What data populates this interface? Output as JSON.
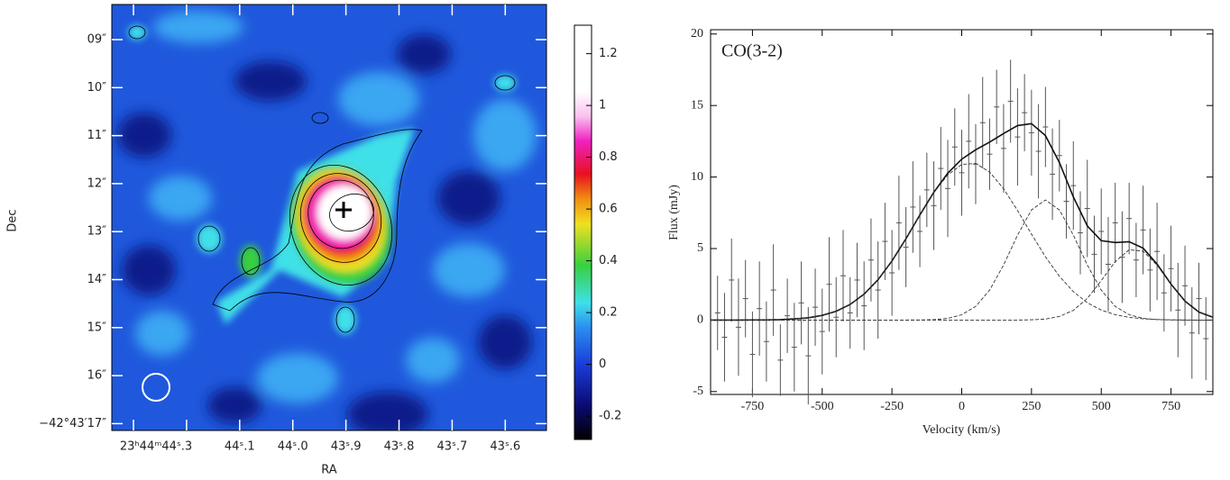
{
  "chart_data": [
    {
      "type": "heatmap",
      "xlabel": "RA",
      "ylabel": "Dec",
      "x_tick_labels": [
        "23ʰ44ᵐ44ˢ.3",
        null,
        "44ˢ.1",
        "44ˢ.0",
        "43ˢ.9",
        "43ˢ.8",
        "43ˢ.7",
        "43ˢ.6"
      ],
      "y_tick_labels": [
        "09″",
        "10″",
        "11″",
        "12″",
        "13″",
        "14″",
        "15″",
        "16″",
        "−42°43′17″"
      ],
      "colorbar": {
        "lim": [
          -0.29,
          1.31
        ],
        "ticks": [
          -0.2,
          0,
          0.2,
          0.4,
          0.6,
          0.8,
          1,
          1.2
        ]
      }
    },
    {
      "type": "errorbar",
      "title": "CO(3-2)",
      "xlabel": "Velocity (km/s)",
      "ylabel": "Flux (mJy)",
      "xlim": [
        -900,
        900
      ],
      "ylim": [
        -5.2,
        20.3
      ],
      "xticks": [
        -750,
        -500,
        -250,
        0,
        250,
        500,
        750
      ],
      "yticks": [
        -5,
        0,
        5,
        10,
        15,
        20
      ],
      "points": {
        "color": "#555555",
        "x": [
          -875,
          -850,
          -825,
          -800,
          -775,
          -750,
          -725,
          -700,
          -675,
          -650,
          -625,
          -600,
          -575,
          -550,
          -525,
          -500,
          -475,
          -450,
          -425,
          -400,
          -375,
          -350,
          -325,
          -300,
          -275,
          -250,
          -225,
          -200,
          -175,
          -150,
          -125,
          -100,
          -75,
          -50,
          -25,
          0,
          25,
          50,
          75,
          100,
          125,
          150,
          175,
          200,
          225,
          250,
          275,
          300,
          325,
          350,
          375,
          400,
          425,
          450,
          475,
          500,
          525,
          550,
          575,
          600,
          625,
          650,
          675,
          700,
          725,
          750,
          775,
          800,
          825,
          850,
          875
        ],
        "values": [
          0.5,
          -1.2,
          2.8,
          -0.5,
          1.5,
          -2.4,
          0.8,
          -1.5,
          2.1,
          -2.8,
          0.3,
          -1.9,
          1.2,
          -2.5,
          0.9,
          -0.8,
          2.5,
          0.2,
          3.1,
          0.5,
          2.8,
          1.0,
          4.2,
          2.1,
          5.5,
          3.3,
          6.8,
          5.1,
          7.9,
          6.2,
          9.1,
          8.0,
          10.6,
          9.2,
          12.1,
          10.3,
          12.5,
          10.9,
          13.8,
          11.6,
          14.9,
          12.0,
          15.3,
          12.8,
          14.5,
          13.1,
          11.8,
          13.5,
          10.2,
          11.5,
          8.3,
          9.4,
          6.1,
          7.8,
          4.6,
          6.2,
          3.9,
          6.8,
          4.4,
          7.1,
          4.2,
          6.3,
          3.5,
          4.8,
          1.9,
          3.6,
          0.7,
          2.4,
          -0.9,
          1.5,
          -1.3
        ],
        "errors": [
          2.6,
          3.1,
          2.9,
          3.4,
          2.7,
          3.0,
          3.3,
          2.8,
          3.2,
          2.5,
          2.6,
          3.1,
          2.9,
          3.4,
          2.7,
          3.0,
          3.3,
          2.8,
          3.2,
          2.5,
          2.6,
          3.1,
          2.9,
          3.4,
          2.7,
          3.0,
          3.3,
          2.8,
          3.2,
          2.5,
          2.6,
          3.1,
          2.9,
          3.4,
          2.7,
          3.0,
          3.3,
          2.8,
          3.2,
          2.5,
          2.6,
          3.1,
          2.9,
          3.4,
          2.7,
          3.0,
          3.3,
          2.8,
          3.2,
          2.5,
          2.6,
          3.1,
          2.9,
          3.4,
          2.7,
          3.0,
          3.3,
          2.8,
          3.2,
          2.5,
          2.6,
          3.1,
          2.9,
          3.4,
          2.7,
          3.0,
          3.3,
          2.8,
          3.2,
          2.5,
          2.9
        ]
      },
      "lines": [
        {
          "dash": false,
          "color": "#111111",
          "x": [
            -900,
            -850,
            -800,
            -750,
            -700,
            -650,
            -600,
            -550,
            -500,
            -450,
            -400,
            -350,
            -300,
            -250,
            -200,
            -150,
            -100,
            -50,
            0,
            50,
            100,
            150,
            200,
            250,
            300,
            350,
            400,
            450,
            500,
            550,
            600,
            650,
            700,
            750,
            800,
            850,
            900
          ],
          "values": [
            0,
            0,
            0,
            0.01,
            0.01,
            0.03,
            0.08,
            0.16,
            0.33,
            0.62,
            1.09,
            1.81,
            2.82,
            4.13,
            5.68,
            7.35,
            8.94,
            10.27,
            11.25,
            11.91,
            12.44,
            13.04,
            13.6,
            13.73,
            12.9,
            11.01,
            8.61,
            6.58,
            5.55,
            5.42,
            5.48,
            5.03,
            3.91,
            2.51,
            1.32,
            0.56,
            0.2
          ]
        },
        {
          "dash": true,
          "color": "#333333",
          "x": [
            -900,
            -850,
            -800,
            -750,
            -700,
            -650,
            -600,
            -550,
            -500,
            -450,
            -400,
            -350,
            -300,
            -250,
            -200,
            -150,
            -100,
            -50,
            0,
            50,
            100,
            150,
            200,
            250,
            300,
            350,
            400,
            450,
            500,
            550,
            600,
            650,
            700,
            750,
            800,
            850,
            900
          ],
          "values": [
            0,
            0,
            0,
            0.01,
            0.01,
            0.03,
            0.08,
            0.16,
            0.33,
            0.62,
            1.09,
            1.81,
            2.82,
            4.13,
            5.68,
            7.34,
            8.91,
            10.15,
            10.88,
            10.95,
            10.35,
            9.19,
            7.66,
            6.01,
            4.43,
            3.06,
            1.99,
            1.21,
            0.7,
            0.37,
            0.19,
            0.09,
            0.04,
            0.02,
            0.01,
            0,
            0
          ]
        },
        {
          "dash": true,
          "color": "#333333",
          "x": [
            -900,
            -850,
            -800,
            -750,
            -700,
            -650,
            -600,
            -550,
            -500,
            -450,
            -400,
            -350,
            -300,
            -250,
            -200,
            -150,
            -100,
            -50,
            0,
            50,
            100,
            150,
            200,
            250,
            300,
            350,
            400,
            450,
            500,
            550,
            600,
            650,
            700,
            750,
            800,
            850,
            900
          ],
          "values": [
            0,
            0,
            0,
            0,
            0,
            0,
            0,
            0,
            0,
            0,
            0,
            0,
            0,
            0,
            0,
            0.01,
            0.03,
            0.12,
            0.37,
            0.96,
            2.09,
            3.85,
            5.94,
            7.7,
            8.4,
            7.7,
            5.94,
            3.85,
            2.09,
            0.96,
            0.37,
            0.12,
            0.03,
            0.01,
            0,
            0,
            0
          ]
        },
        {
          "dash": true,
          "color": "#333333",
          "x": [
            -900,
            -850,
            -800,
            -750,
            -700,
            -650,
            -600,
            -550,
            -500,
            -450,
            -400,
            -350,
            -300,
            -250,
            -200,
            -150,
            -100,
            -50,
            0,
            50,
            100,
            150,
            200,
            250,
            300,
            350,
            400,
            450,
            500,
            550,
            600,
            650,
            700,
            750,
            800,
            850,
            900
          ],
          "values": [
            0,
            0,
            0,
            0,
            0,
            0,
            0,
            0,
            0,
            0,
            0,
            0,
            0,
            0,
            0,
            0,
            0,
            0,
            0,
            0,
            0,
            0,
            0,
            0.02,
            0.07,
            0.25,
            0.68,
            1.52,
            2.76,
            4.09,
            4.92,
            4.82,
            3.84,
            2.49,
            1.31,
            0.56,
            0.2
          ]
        }
      ]
    }
  ]
}
